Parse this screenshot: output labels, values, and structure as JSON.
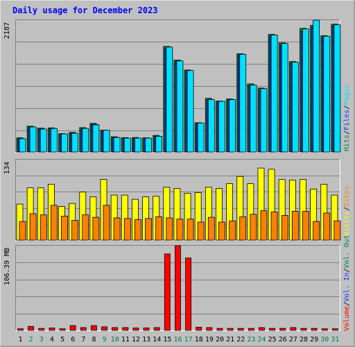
{
  "title": "Daily usage for December 2023",
  "colors": {
    "background": "#C0C0C0",
    "title": "#0000FF",
    "hits": "#008040",
    "files": "#0040FF",
    "pages": "#00E0FF",
    "visits": "#FFFF00",
    "sites": "#FF8000",
    "volume": "#FF0000",
    "weekend_label": "#008040",
    "weekday_label": "#000000"
  },
  "legend": {
    "top": [
      {
        "text": "Hits",
        "color": "#008040"
      },
      {
        "text": "Files",
        "color": "#0040FF"
      },
      {
        "text": "Pages",
        "color": "#00E0FF"
      }
    ],
    "middle": [
      {
        "text": "Visits",
        "color": "#FFFF00"
      },
      {
        "text": "Sites",
        "color": "#FF8000"
      }
    ],
    "bottom": [
      {
        "text": "Volume",
        "color": "#FF0000"
      },
      {
        "text": "Vol. In",
        "color": "#0040FF"
      },
      {
        "text": "Vol. Out",
        "color": "#008040"
      }
    ]
  },
  "chart_data": [
    {
      "type": "bar",
      "panel": "hits-files-pages",
      "ymax_label": "2187",
      "ylim": [
        0,
        2187
      ],
      "categories": [
        "1",
        "2",
        "3",
        "4",
        "5",
        "6",
        "7",
        "8",
        "9",
        "10",
        "11",
        "12",
        "13",
        "14",
        "15",
        "16",
        "17",
        "18",
        "19",
        "20",
        "21",
        "22",
        "23",
        "24",
        "25",
        "26",
        "27",
        "28",
        "29",
        "30",
        "31"
      ],
      "weekend_days": [
        "2",
        "3",
        "9",
        "10",
        "16",
        "17",
        "23",
        "24",
        "30",
        "31"
      ],
      "series": [
        {
          "name": "Hits",
          "values": [
            235,
            428,
            396,
            400,
            305,
            326,
            404,
            475,
            362,
            253,
            238,
            240,
            235,
            275,
            1750,
            1525,
            1360,
            485,
            890,
            845,
            880,
            1630,
            1130,
            1060,
            1950,
            1810,
            1500,
            2050,
            2100,
            1930,
            2120
          ]
        },
        {
          "name": "Files",
          "values": [
            215,
            410,
            380,
            385,
            290,
            310,
            385,
            455,
            345,
            240,
            225,
            225,
            220,
            260,
            1720,
            1500,
            1340,
            470,
            860,
            830,
            860,
            1600,
            1100,
            1035,
            1920,
            1780,
            1480,
            2000,
            2070,
            1900,
            2090
          ]
        },
        {
          "name": "Pages",
          "values": [
            220,
            415,
            380,
            390,
            300,
            310,
            390,
            450,
            360,
            240,
            230,
            230,
            230,
            260,
            1740,
            1510,
            1350,
            480,
            870,
            840,
            870,
            1620,
            1110,
            1050,
            1940,
            1800,
            1490,
            2040,
            2187,
            1920,
            2110
          ]
        }
      ]
    },
    {
      "type": "bar",
      "panel": "visits-sites",
      "ymax_label": "134",
      "ylim": [
        0,
        134
      ],
      "categories": [
        "1",
        "2",
        "3",
        "4",
        "5",
        "6",
        "7",
        "8",
        "9",
        "10",
        "11",
        "12",
        "13",
        "14",
        "15",
        "16",
        "17",
        "18",
        "19",
        "20",
        "21",
        "22",
        "23",
        "24",
        "25",
        "26",
        "27",
        "28",
        "29",
        "30",
        "31"
      ],
      "series": [
        {
          "name": "Visits",
          "values": [
            60,
            87,
            87,
            93,
            56,
            61,
            80,
            72,
            101,
            75,
            75,
            68,
            72,
            73,
            88,
            86,
            78,
            79,
            88,
            86,
            94,
            106,
            94,
            120,
            118,
            101,
            100,
            101,
            85,
            93,
            75
          ]
        },
        {
          "name": "Sites",
          "values": [
            31,
            44,
            42,
            58,
            40,
            33,
            42,
            38,
            58,
            37,
            36,
            34,
            36,
            39,
            37,
            35,
            35,
            30,
            38,
            30,
            32,
            39,
            43,
            49,
            47,
            41,
            48,
            48,
            31,
            45,
            32
          ]
        }
      ]
    },
    {
      "type": "bar",
      "panel": "volume",
      "ymax_label": "106.39 MB",
      "ylim": [
        0,
        106.39
      ],
      "categories": [
        "1",
        "2",
        "3",
        "4",
        "5",
        "6",
        "7",
        "8",
        "9",
        "10",
        "11",
        "12",
        "13",
        "14",
        "15",
        "16",
        "17",
        "18",
        "19",
        "20",
        "21",
        "22",
        "23",
        "24",
        "25",
        "26",
        "27",
        "28",
        "29",
        "30",
        "31"
      ],
      "series": [
        {
          "name": "Volume",
          "values": [
            2.0,
            5.0,
            2.5,
            3.0,
            2.0,
            6.0,
            3.5,
            6.0,
            4.5,
            3.5,
            3.5,
            3.0,
            3.0,
            3.5,
            96,
            106.39,
            91,
            4.0,
            3.5,
            2.5,
            2.5,
            2.5,
            2.5,
            3.5,
            2.5,
            2.5,
            3.5,
            2.5,
            2.5,
            2.0,
            2.0
          ]
        }
      ]
    }
  ]
}
